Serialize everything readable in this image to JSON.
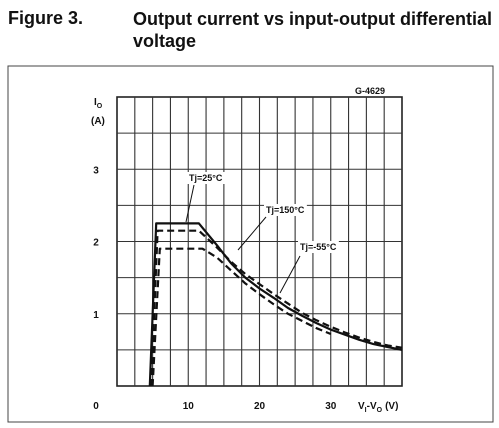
{
  "figure": {
    "label": "Figure 3.",
    "title": "Output current vs input-output differential voltage"
  },
  "chart_data": {
    "type": "line",
    "code": "G-4629",
    "ylabel_top": "I",
    "ylabel_sub": "O",
    "ylabel_unit": "(A)",
    "xlabel": "V",
    "xlabel_sub1": "I",
    "xlabel_mid": "-V",
    "xlabel_sub2": "O",
    "xlabel_unit": "(V)",
    "xlim": [
      0,
      40
    ],
    "ylim": [
      0,
      4
    ],
    "x_ticks": [
      {
        "value": 0,
        "label": "0"
      },
      {
        "value": 10,
        "label": "10"
      },
      {
        "value": 20,
        "label": "20"
      },
      {
        "value": 30,
        "label": "30"
      }
    ],
    "y_ticks": [
      {
        "value": 1,
        "label": "1"
      },
      {
        "value": 2,
        "label": "2"
      },
      {
        "value": 3,
        "label": "3"
      }
    ],
    "grid": true,
    "series": [
      {
        "name": "Tj=25°C",
        "style": "solid",
        "x": [
          4.6,
          5.5,
          11.5,
          14,
          16,
          18,
          20,
          22,
          24,
          26,
          28,
          30,
          32,
          34,
          36,
          38,
          40
        ],
        "y": [
          0,
          2.25,
          2.25,
          1.95,
          1.7,
          1.5,
          1.35,
          1.22,
          1.08,
          0.97,
          0.87,
          0.78,
          0.71,
          0.64,
          0.58,
          0.54,
          0.5
        ]
      },
      {
        "name": "Tj=150°C",
        "style": "dashed",
        "x": [
          5.0,
          6.0,
          12.0,
          14,
          16,
          18,
          20,
          22,
          24,
          26,
          28,
          30
        ],
        "y": [
          0,
          1.9,
          1.9,
          1.78,
          1.6,
          1.42,
          1.27,
          1.13,
          1.0,
          0.9,
          0.8,
          0.72
        ]
      },
      {
        "name": "Tj=-55°C",
        "style": "dashed",
        "x": [
          4.8,
          5.7,
          11.5,
          14,
          16,
          18,
          20,
          22,
          24,
          26,
          28,
          30,
          32,
          34,
          36,
          38,
          40
        ],
        "y": [
          0,
          2.15,
          2.15,
          1.92,
          1.72,
          1.55,
          1.41,
          1.27,
          1.14,
          1.01,
          0.91,
          0.82,
          0.74,
          0.67,
          0.61,
          0.56,
          0.53
        ]
      }
    ],
    "annotations": [
      {
        "text": "Tj=25°C",
        "series": 0
      },
      {
        "text": "Tj=150°C",
        "series": 1
      },
      {
        "text": "Tj=-55°C",
        "series": 2
      }
    ]
  }
}
